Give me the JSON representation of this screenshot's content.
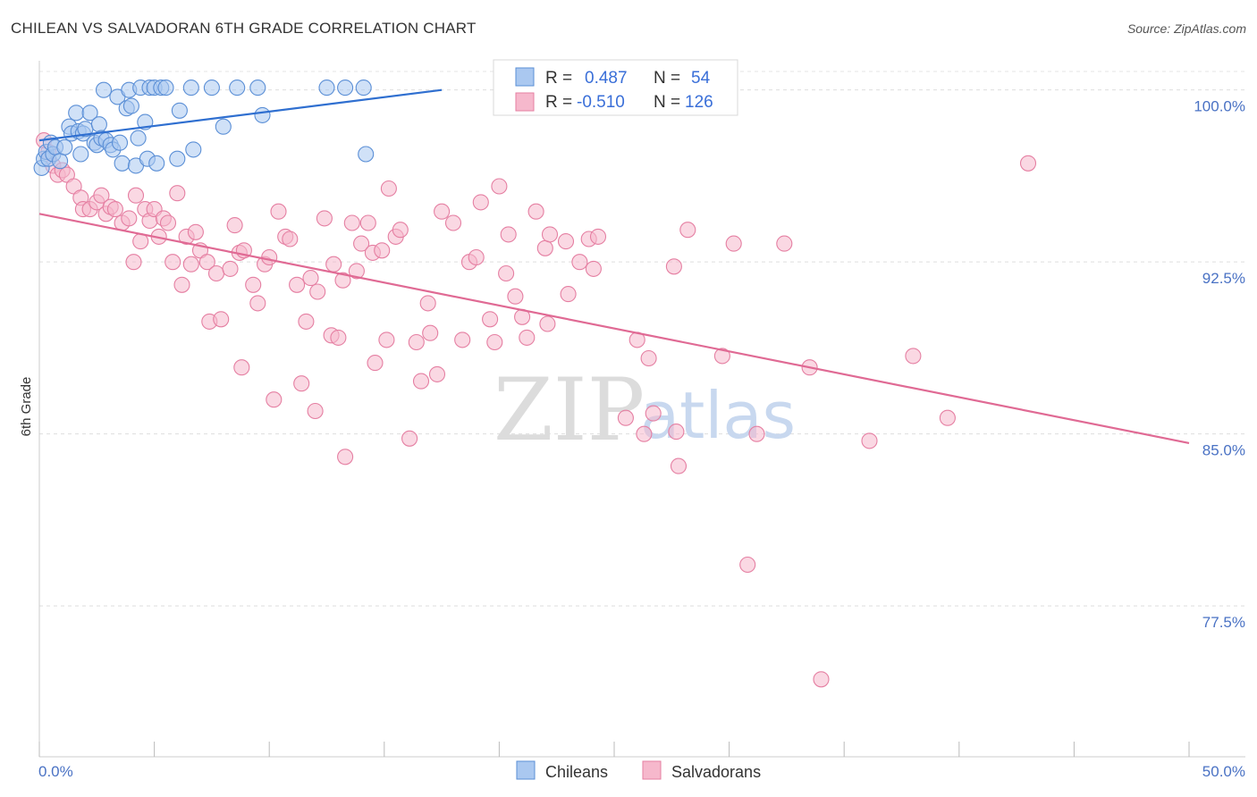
{
  "header": {
    "title": "CHILEAN VS SALVADORAN 6TH GRADE CORRELATION CHART",
    "source": "Source: ZipAtlas.com"
  },
  "watermark": {
    "zip": "ZIP",
    "atlas": "atlas"
  },
  "legend": {
    "r_label": "R =",
    "n_label": "N =",
    "rows": [
      {
        "series": "Chileans",
        "r": "0.487",
        "n": "54",
        "fill": "#aac8f0",
        "stroke": "#5b8fd6"
      },
      {
        "series": "Salvadorans",
        "r": "-0.510",
        "n": "126",
        "fill": "#f6b8cc",
        "stroke": "#e57fa2"
      }
    ]
  },
  "chart_data": {
    "type": "scatter",
    "title": "CHILEAN VS SALVADORAN 6TH GRADE CORRELATION CHART",
    "xlabel": "",
    "ylabel": "6th Grade",
    "xlim": [
      0,
      50
    ],
    "ylim": [
      71.0,
      101.0
    ],
    "x_tick_labels": [
      "0.0%",
      "50.0%"
    ],
    "y_ticks": [
      100.0,
      92.5,
      85.0,
      77.5
    ],
    "y_tick_labels": [
      "100.0%",
      "92.5%",
      "85.0%",
      "77.5%"
    ],
    "grid": true,
    "series": [
      {
        "name": "Chileans",
        "color": "#5b8fd6",
        "fill": "#aac8f0",
        "trend": {
          "x": [
            0.0,
            17.5
          ],
          "y": [
            97.8,
            100.0
          ],
          "color": "#2f6fd0"
        },
        "points": [
          [
            0.1,
            96.6
          ],
          [
            0.2,
            97.0
          ],
          [
            0.3,
            97.3
          ],
          [
            0.4,
            97.0
          ],
          [
            0.5,
            97.7
          ],
          [
            0.6,
            97.2
          ],
          [
            0.7,
            97.5
          ],
          [
            0.9,
            96.9
          ],
          [
            1.1,
            97.5
          ],
          [
            1.3,
            98.4
          ],
          [
            1.4,
            98.1
          ],
          [
            1.6,
            99.0
          ],
          [
            1.7,
            98.2
          ],
          [
            1.8,
            97.2
          ],
          [
            1.9,
            98.1
          ],
          [
            2.0,
            98.3
          ],
          [
            2.2,
            99.0
          ],
          [
            2.4,
            97.7
          ],
          [
            2.5,
            97.6
          ],
          [
            2.6,
            98.5
          ],
          [
            2.7,
            97.9
          ],
          [
            2.8,
            100.0
          ],
          [
            2.9,
            97.8
          ],
          [
            3.1,
            97.6
          ],
          [
            3.2,
            97.4
          ],
          [
            3.4,
            99.7
          ],
          [
            3.5,
            97.7
          ],
          [
            3.6,
            96.8
          ],
          [
            3.8,
            99.2
          ],
          [
            3.9,
            100.0
          ],
          [
            4.0,
            99.3
          ],
          [
            4.2,
            96.7
          ],
          [
            4.3,
            97.9
          ],
          [
            4.4,
            100.1
          ],
          [
            4.6,
            98.6
          ],
          [
            4.7,
            97.0
          ],
          [
            4.8,
            100.1
          ],
          [
            5.0,
            100.1
          ],
          [
            5.1,
            96.8
          ],
          [
            5.3,
            100.1
          ],
          [
            5.5,
            100.1
          ],
          [
            6.0,
            97.0
          ],
          [
            6.1,
            99.1
          ],
          [
            6.7,
            97.4
          ],
          [
            6.6,
            100.1
          ],
          [
            7.5,
            100.1
          ],
          [
            8.0,
            98.4
          ],
          [
            8.6,
            100.1
          ],
          [
            9.5,
            100.1
          ],
          [
            9.7,
            98.9
          ],
          [
            12.5,
            100.1
          ],
          [
            13.3,
            100.1
          ],
          [
            14.1,
            100.1
          ],
          [
            14.2,
            97.2
          ]
        ]
      },
      {
        "name": "Salvadorans",
        "color": "#e57fa2",
        "fill": "#f6b8cc",
        "trend": {
          "x": [
            0.0,
            50.0
          ],
          "y": [
            94.6,
            84.6
          ],
          "color": "#e06a94"
        },
        "points": [
          [
            0.2,
            97.8
          ],
          [
            0.4,
            97.3
          ],
          [
            0.6,
            96.7
          ],
          [
            0.8,
            96.3
          ],
          [
            1.0,
            96.5
          ],
          [
            1.2,
            96.3
          ],
          [
            1.5,
            95.8
          ],
          [
            1.8,
            95.3
          ],
          [
            1.9,
            94.8
          ],
          [
            2.2,
            94.8
          ],
          [
            2.5,
            95.1
          ],
          [
            2.7,
            95.4
          ],
          [
            2.9,
            94.6
          ],
          [
            3.1,
            94.9
          ],
          [
            3.3,
            94.8
          ],
          [
            3.6,
            94.2
          ],
          [
            3.9,
            94.4
          ],
          [
            4.1,
            92.5
          ],
          [
            4.2,
            95.4
          ],
          [
            4.4,
            93.4
          ],
          [
            4.6,
            94.8
          ],
          [
            4.8,
            94.3
          ],
          [
            5.0,
            94.8
          ],
          [
            5.2,
            93.6
          ],
          [
            5.4,
            94.4
          ],
          [
            5.6,
            94.2
          ],
          [
            5.8,
            92.5
          ],
          [
            6.0,
            95.5
          ],
          [
            6.2,
            91.5
          ],
          [
            6.4,
            93.6
          ],
          [
            6.6,
            92.4
          ],
          [
            6.8,
            93.8
          ],
          [
            7.0,
            93.0
          ],
          [
            7.3,
            92.5
          ],
          [
            7.4,
            89.9
          ],
          [
            7.7,
            92.0
          ],
          [
            7.9,
            90.0
          ],
          [
            8.3,
            92.2
          ],
          [
            8.5,
            94.1
          ],
          [
            8.7,
            92.9
          ],
          [
            8.9,
            93.0
          ],
          [
            8.8,
            87.9
          ],
          [
            9.3,
            91.5
          ],
          [
            9.5,
            90.7
          ],
          [
            9.8,
            92.4
          ],
          [
            10.0,
            92.7
          ],
          [
            10.2,
            86.5
          ],
          [
            10.4,
            94.7
          ],
          [
            10.7,
            93.6
          ],
          [
            10.9,
            93.5
          ],
          [
            11.2,
            91.5
          ],
          [
            11.4,
            87.2
          ],
          [
            11.6,
            89.9
          ],
          [
            11.8,
            91.8
          ],
          [
            12.0,
            86.0
          ],
          [
            12.1,
            91.2
          ],
          [
            12.4,
            94.4
          ],
          [
            12.7,
            89.3
          ],
          [
            12.8,
            92.4
          ],
          [
            13.0,
            89.2
          ],
          [
            13.2,
            91.7
          ],
          [
            13.3,
            84.0
          ],
          [
            13.6,
            94.2
          ],
          [
            13.8,
            92.1
          ],
          [
            14.0,
            93.3
          ],
          [
            14.3,
            94.2
          ],
          [
            14.5,
            92.9
          ],
          [
            14.6,
            88.1
          ],
          [
            14.9,
            93.0
          ],
          [
            15.1,
            89.1
          ],
          [
            15.2,
            95.7
          ],
          [
            15.5,
            93.6
          ],
          [
            15.7,
            93.9
          ],
          [
            16.1,
            84.8
          ],
          [
            16.4,
            89.0
          ],
          [
            16.6,
            87.3
          ],
          [
            16.9,
            90.7
          ],
          [
            17.0,
            89.4
          ],
          [
            17.3,
            87.6
          ],
          [
            17.5,
            94.7
          ],
          [
            18.0,
            94.2
          ],
          [
            18.4,
            89.1
          ],
          [
            18.7,
            92.5
          ],
          [
            19.0,
            92.7
          ],
          [
            19.2,
            95.1
          ],
          [
            19.6,
            90.0
          ],
          [
            19.8,
            89.0
          ],
          [
            20.0,
            95.8
          ],
          [
            20.3,
            92.0
          ],
          [
            20.4,
            93.7
          ],
          [
            20.7,
            91.0
          ],
          [
            21.0,
            90.1
          ],
          [
            21.2,
            89.2
          ],
          [
            21.6,
            94.7
          ],
          [
            22.0,
            93.1
          ],
          [
            22.1,
            89.8
          ],
          [
            22.2,
            93.7
          ],
          [
            22.9,
            93.4
          ],
          [
            23.0,
            91.1
          ],
          [
            23.5,
            92.5
          ],
          [
            23.9,
            93.5
          ],
          [
            24.1,
            92.2
          ],
          [
            24.3,
            93.6
          ],
          [
            25.5,
            85.7
          ],
          [
            26.0,
            89.1
          ],
          [
            26.3,
            85.0
          ],
          [
            26.5,
            88.3
          ],
          [
            26.7,
            85.9
          ],
          [
            27.7,
            85.1
          ],
          [
            27.8,
            83.6
          ],
          [
            27.6,
            92.3
          ],
          [
            28.2,
            93.9
          ],
          [
            29.7,
            88.4
          ],
          [
            30.2,
            93.3
          ],
          [
            30.8,
            79.3
          ],
          [
            31.2,
            85.0
          ],
          [
            32.4,
            93.3
          ],
          [
            33.5,
            87.9
          ],
          [
            34.0,
            74.3
          ],
          [
            36.1,
            84.7
          ],
          [
            38.0,
            88.4
          ],
          [
            39.5,
            85.7
          ],
          [
            43.0,
            96.8
          ]
        ]
      }
    ]
  },
  "bottom_legend": [
    {
      "label": "Chileans",
      "fill": "#aac8f0",
      "stroke": "#5b8fd6"
    },
    {
      "label": "Salvadorans",
      "fill": "#f6b8cc",
      "stroke": "#e57fa2"
    }
  ]
}
